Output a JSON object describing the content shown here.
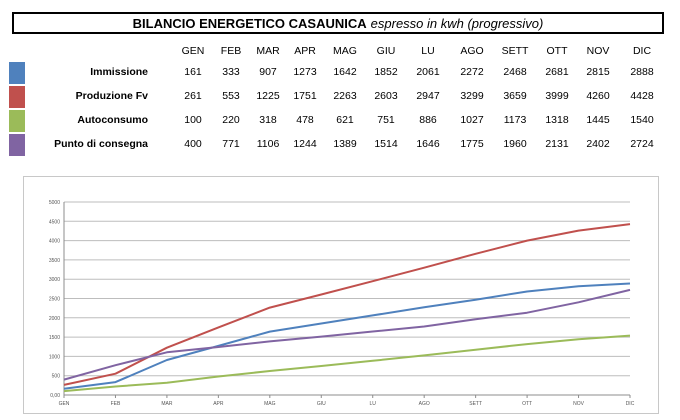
{
  "title": {
    "bold": "BILANCIO ENERGETICO CASAUNICA",
    "italic": "espresso in kwh (progressivo)"
  },
  "summary_table": {
    "columns": [
      "GEN",
      "FEB",
      "MAR",
      "APR",
      "MAG",
      "GIU",
      "LU",
      "AGO",
      "SETT",
      "OTT",
      "NOV",
      "DIC"
    ],
    "rows": [
      {
        "label": "Immissione",
        "color": "#4f81bd",
        "values": [
          161,
          333,
          907,
          1273,
          1642,
          1852,
          2061,
          2272,
          2468,
          2681,
          2815,
          2888
        ]
      },
      {
        "label": "Produzione Fv",
        "color": "#c0504d",
        "values": [
          261,
          553,
          1225,
          1751,
          2263,
          2603,
          2947,
          3299,
          3659,
          3999,
          4260,
          4428
        ]
      },
      {
        "label": "Autoconsumo",
        "color": "#9bbb59",
        "values": [
          100,
          220,
          318,
          478,
          621,
          751,
          886,
          1027,
          1173,
          1318,
          1445,
          1540
        ]
      },
      {
        "label": "Punto di consegna",
        "color": "#8064a2",
        "values": [
          400,
          771,
          1106,
          1244,
          1389,
          1514,
          1646,
          1775,
          1960,
          2131,
          2402,
          2724
        ]
      }
    ]
  },
  "chart_data": {
    "type": "line",
    "categories": [
      "GEN",
      "FEB",
      "MAR",
      "APR",
      "MAG",
      "GIU",
      "LU",
      "AGO",
      "SETT",
      "OTT",
      "NOV",
      "DIC"
    ],
    "series": [
      {
        "name": "Immissione",
        "color": "#4f81bd",
        "values": [
          161,
          333,
          907,
          1273,
          1642,
          1852,
          2061,
          2272,
          2468,
          2681,
          2815,
          2888
        ]
      },
      {
        "name": "Produzione Fv",
        "color": "#c0504d",
        "values": [
          261,
          553,
          1225,
          1751,
          2263,
          2603,
          2947,
          3299,
          3659,
          3999,
          4260,
          4428
        ]
      },
      {
        "name": "Autoconsumo",
        "color": "#9bbb59",
        "values": [
          100,
          220,
          318,
          478,
          621,
          751,
          886,
          1027,
          1173,
          1318,
          1445,
          1540
        ]
      },
      {
        "name": "Punto di consegna",
        "color": "#8064a2",
        "values": [
          400,
          771,
          1106,
          1244,
          1389,
          1514,
          1646,
          1775,
          1960,
          2131,
          2402,
          2724
        ]
      }
    ],
    "y_ticks": [
      "0,00",
      "500",
      "1000",
      "1500",
      "2000",
      "2500",
      "3000",
      "3500",
      "4000",
      "4500",
      "5000"
    ],
    "ylim": [
      0,
      5000
    ],
    "grid": true,
    "legend": "none"
  }
}
